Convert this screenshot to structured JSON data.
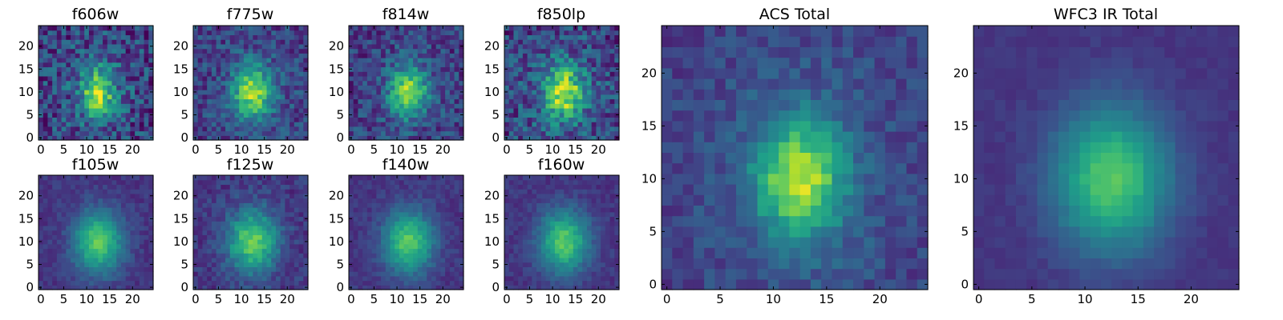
{
  "chart_data": [
    {
      "type": "heatmap",
      "title": "f606w",
      "xticks": [
        "0",
        "5",
        "10",
        "15",
        "20"
      ],
      "yticks": [
        "0",
        "5",
        "10",
        "15",
        "20"
      ],
      "grid_size": 25,
      "center": [
        12.5,
        10
      ],
      "peak_width": [
        2.2,
        3.2
      ],
      "noise": 0.42,
      "background": 0.35,
      "colormap": "viridis"
    },
    {
      "type": "heatmap",
      "title": "f775w",
      "xticks": [
        "0",
        "5",
        "10",
        "15",
        "20"
      ],
      "yticks": [
        "0",
        "5",
        "10",
        "15",
        "20"
      ],
      "grid_size": 25,
      "center": [
        12.5,
        10
      ],
      "peak_width": [
        3.0,
        4.0
      ],
      "noise": 0.3,
      "background": 0.25,
      "colormap": "viridis"
    },
    {
      "type": "heatmap",
      "title": "f814w",
      "xticks": [
        "0",
        "5",
        "10",
        "15",
        "20"
      ],
      "yticks": [
        "0",
        "5",
        "10",
        "15",
        "20"
      ],
      "grid_size": 25,
      "center": [
        12.5,
        10
      ],
      "peak_width": [
        3.0,
        4.0
      ],
      "noise": 0.32,
      "background": 0.22,
      "colormap": "viridis"
    },
    {
      "type": "heatmap",
      "title": "f850lp",
      "xticks": [
        "0",
        "5",
        "10",
        "15",
        "20"
      ],
      "yticks": [
        "0",
        "5",
        "10",
        "15",
        "20"
      ],
      "grid_size": 25,
      "center": [
        12.5,
        10
      ],
      "peak_width": [
        2.8,
        3.8
      ],
      "noise": 0.4,
      "background": 0.33,
      "colormap": "viridis"
    },
    {
      "type": "heatmap",
      "title": "f105w",
      "xticks": [
        "0",
        "5",
        "10",
        "15",
        "20"
      ],
      "yticks": [
        "0",
        "5",
        "10",
        "15",
        "20"
      ],
      "grid_size": 25,
      "center": [
        12.5,
        10
      ],
      "peak_width": [
        4.0,
        5.0
      ],
      "noise": 0.12,
      "background": 0.12,
      "colormap": "viridis"
    },
    {
      "type": "heatmap",
      "title": "f125w",
      "xticks": [
        "0",
        "5",
        "10",
        "15",
        "20"
      ],
      "yticks": [
        "0",
        "5",
        "10",
        "15",
        "20"
      ],
      "grid_size": 25,
      "center": [
        12.5,
        10
      ],
      "peak_width": [
        4.0,
        5.0
      ],
      "noise": 0.18,
      "background": 0.14,
      "colormap": "viridis"
    },
    {
      "type": "heatmap",
      "title": "f140w",
      "xticks": [
        "0",
        "5",
        "10",
        "15",
        "20"
      ],
      "yticks": [
        "0",
        "5",
        "10",
        "15",
        "20"
      ],
      "grid_size": 25,
      "center": [
        12.5,
        10
      ],
      "peak_width": [
        4.0,
        5.0
      ],
      "noise": 0.12,
      "background": 0.12,
      "colormap": "viridis"
    },
    {
      "type": "heatmap",
      "title": "f160w",
      "xticks": [
        "0",
        "5",
        "10",
        "15",
        "20"
      ],
      "yticks": [
        "0",
        "5",
        "10",
        "15",
        "20"
      ],
      "grid_size": 25,
      "center": [
        12.5,
        10
      ],
      "peak_width": [
        4.0,
        5.0
      ],
      "noise": 0.12,
      "background": 0.12,
      "colormap": "viridis"
    },
    {
      "type": "heatmap",
      "title": "ACS Total",
      "xticks": [
        "0",
        "5",
        "10",
        "15",
        "20"
      ],
      "yticks": [
        "0",
        "5",
        "10",
        "15",
        "20"
      ],
      "grid_size": 25,
      "center": [
        12.5,
        10
      ],
      "peak_width": [
        2.8,
        3.8
      ],
      "noise": 0.18,
      "background": 0.3,
      "colormap": "viridis"
    },
    {
      "type": "heatmap",
      "title": "WFC3 IR Total",
      "xticks": [
        "0",
        "5",
        "10",
        "15",
        "20"
      ],
      "yticks": [
        "0",
        "5",
        "10",
        "15",
        "20"
      ],
      "grid_size": 25,
      "center": [
        12.5,
        10
      ],
      "peak_width": [
        4.0,
        5.0
      ],
      "noise": 0.06,
      "background": 0.12,
      "colormap": "viridis"
    }
  ]
}
